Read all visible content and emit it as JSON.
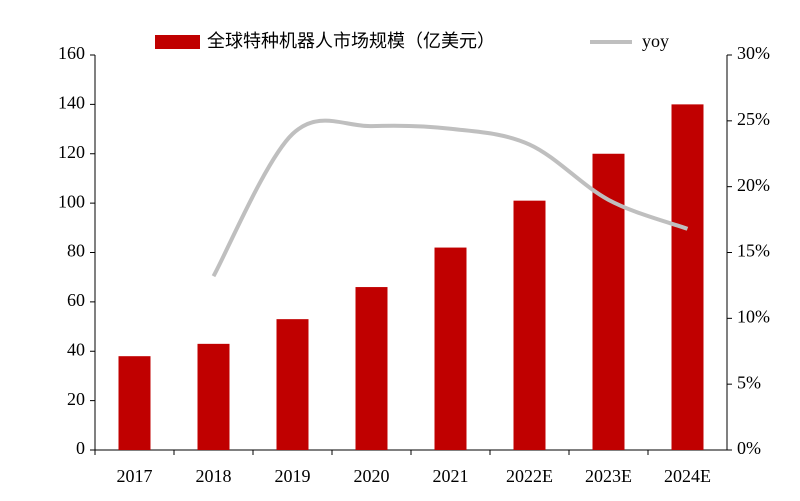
{
  "chart_data": {
    "type": "bar-line",
    "categories": [
      "2017",
      "2018",
      "2019",
      "2020",
      "2021",
      "2022E",
      "2023E",
      "2024E"
    ],
    "series": [
      {
        "name": "全球特种机器人市场规模（亿美元）",
        "color": "#c00000",
        "type": "bar",
        "values": [
          38,
          43,
          53,
          66,
          82,
          101,
          120,
          140
        ]
      },
      {
        "name": "yoy",
        "color": "#bfbfbf",
        "type": "line",
        "axis": "y2",
        "values": [
          null,
          13.2,
          24,
          24.6,
          24.4,
          23.2,
          19,
          16.8
        ]
      }
    ],
    "ylim": [
      0,
      160
    ],
    "yticks": [
      0,
      20,
      40,
      60,
      80,
      100,
      120,
      140,
      160
    ],
    "y2lim": [
      0,
      30
    ],
    "y2ticks": [
      {
        "value": 0,
        "label": "0%"
      },
      {
        "value": 5,
        "label": "5%"
      },
      {
        "value": 10,
        "label": "10%"
      },
      {
        "value": 15,
        "label": "15%"
      },
      {
        "value": 20,
        "label": "20%"
      },
      {
        "value": 25,
        "label": "25%"
      },
      {
        "value": 30,
        "label": "30%"
      }
    ],
    "legend": "top"
  }
}
